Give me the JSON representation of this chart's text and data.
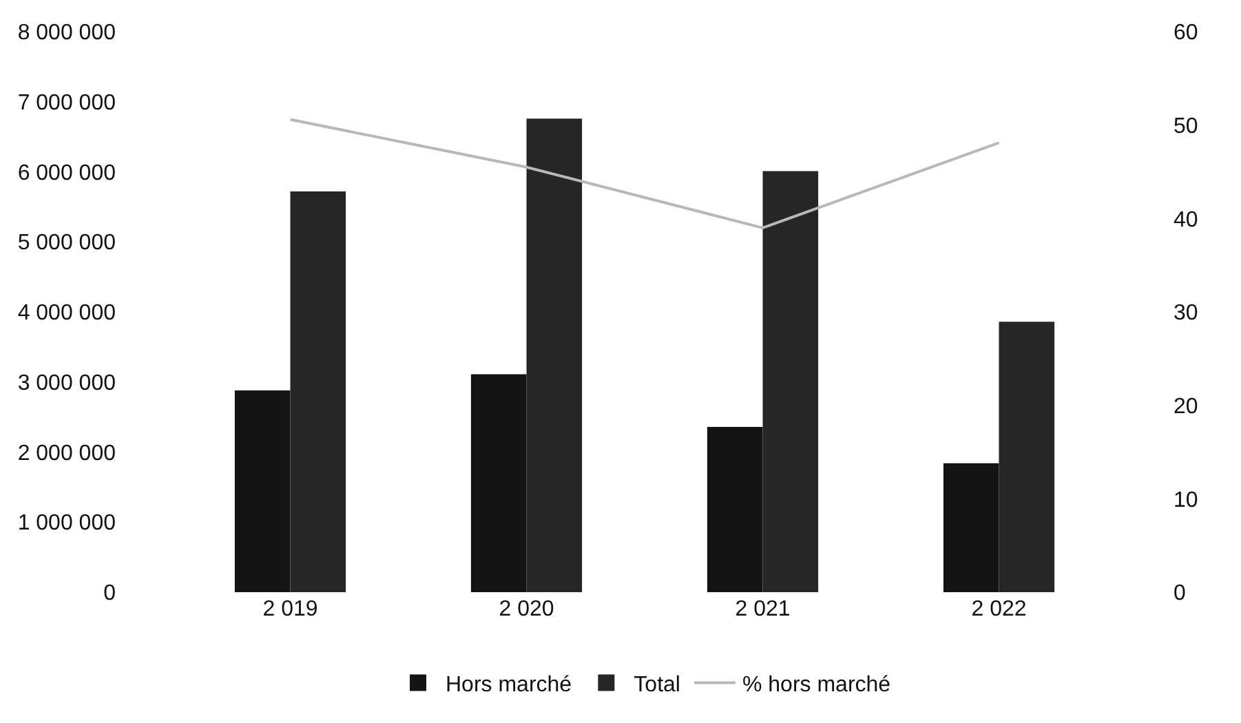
{
  "chart_data": {
    "type": "bar",
    "categories": [
      "2 019",
      "2 020",
      "2 021",
      "2 022"
    ],
    "series": [
      {
        "name": "Hors marché",
        "color": "#141414",
        "values": [
          2880000,
          3110000,
          2360000,
          1840000
        ]
      },
      {
        "name": "Total",
        "color": "#262626",
        "values": [
          5720000,
          6760000,
          6010000,
          3860000
        ]
      },
      {
        "name": "% hors marché",
        "type": "line",
        "axis": "y2",
        "color": "#b8b8b8",
        "values": [
          50.6,
          45.5,
          39,
          48.1
        ]
      }
    ],
    "ylim": [
      0,
      8000000
    ],
    "yticks": [
      {
        "value": 0,
        "label": "0"
      },
      {
        "value": 1000000,
        "label": "1 000 000"
      },
      {
        "value": 2000000,
        "label": "2 000 000"
      },
      {
        "value": 3000000,
        "label": "3 000 000"
      },
      {
        "value": 4000000,
        "label": "4 000 000"
      },
      {
        "value": 5000000,
        "label": "5 000 000"
      },
      {
        "value": 6000000,
        "label": "6 000 000"
      },
      {
        "value": 7000000,
        "label": "7 000 000"
      },
      {
        "value": 8000000,
        "label": "8 000 000"
      }
    ],
    "y2lim": [
      0,
      60
    ],
    "y2ticks": [
      0,
      10,
      20,
      30,
      40,
      50,
      60
    ],
    "grid": false,
    "legend": "bottom"
  }
}
